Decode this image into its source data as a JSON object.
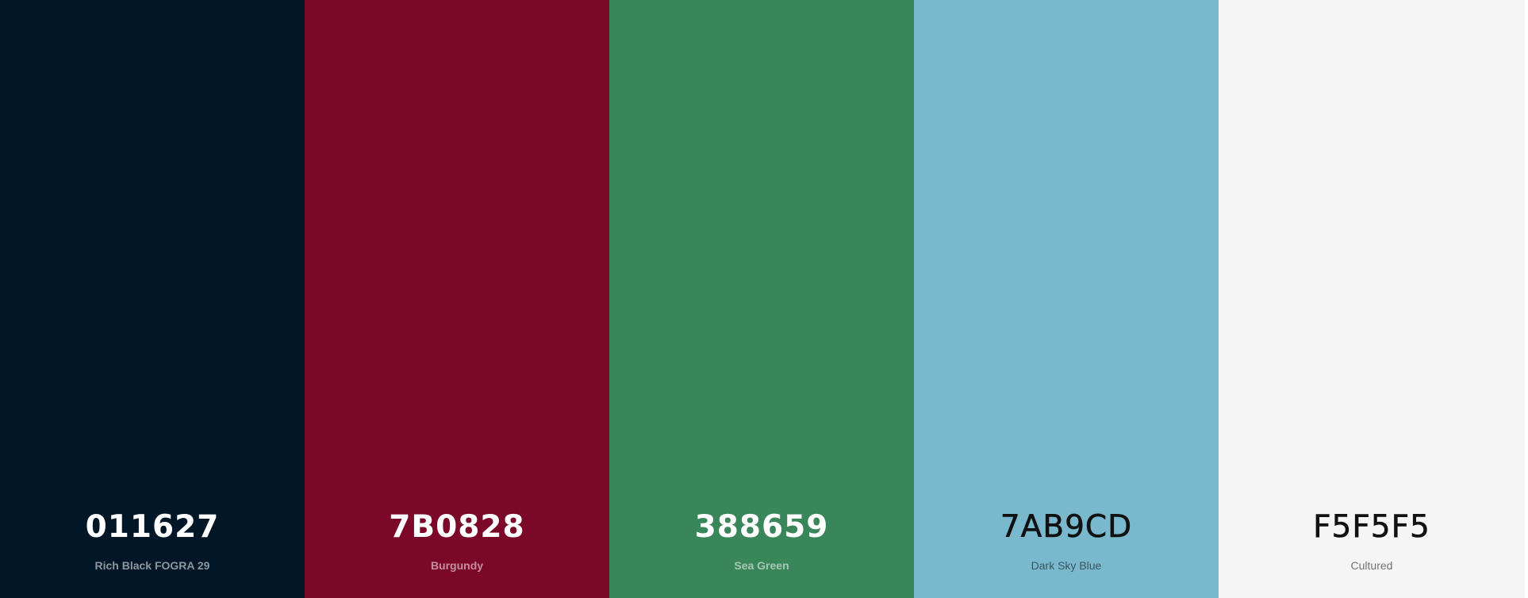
{
  "palette": {
    "swatches": [
      {
        "hex": "011627",
        "name": "Rich Black FOGRA 29",
        "color": "#011627",
        "tone": "dark"
      },
      {
        "hex": "7B0828",
        "name": "Burgundy",
        "color": "#7B0828",
        "tone": "dark"
      },
      {
        "hex": "388659",
        "name": "Sea Green",
        "color": "#388659",
        "tone": "dark"
      },
      {
        "hex": "7AB9CD",
        "name": "Dark Sky Blue",
        "color": "#7AB9CD",
        "tone": "light"
      },
      {
        "hex": "F5F5F5",
        "name": "Cultured",
        "color": "#F5F5F5",
        "tone": "light"
      }
    ]
  }
}
